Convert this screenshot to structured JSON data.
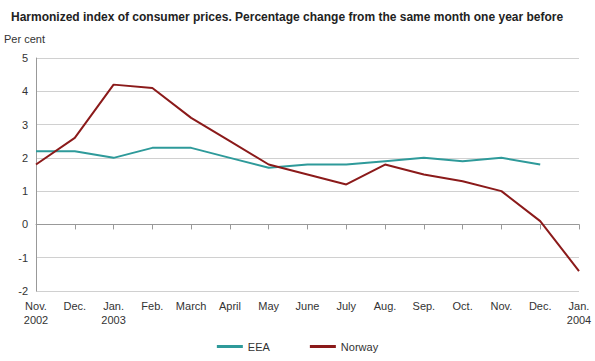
{
  "chart_data": {
    "type": "line",
    "title": "Harmonized index of consumer prices. Percentage change from the same month one year before",
    "y_label": "Per cent",
    "categories": [
      "Nov.\n2002",
      "Dec.",
      "Jan.\n2003",
      "Feb.",
      "March",
      "April",
      "May",
      "June",
      "July",
      "Aug.",
      "Sep.",
      "Oct.",
      "Nov.",
      "Dec.",
      "Jan.\n2004"
    ],
    "series": [
      {
        "name": "EEA",
        "color": "#2e9a9a",
        "values": [
          2.2,
          2.2,
          2.0,
          2.3,
          2.3,
          2.0,
          1.7,
          1.8,
          1.8,
          1.9,
          2.0,
          1.9,
          2.0,
          1.8,
          null
        ]
      },
      {
        "name": "Norway",
        "color": "#8b1a1a",
        "values": [
          1.8,
          2.6,
          4.2,
          4.1,
          3.2,
          2.5,
          1.8,
          1.5,
          1.2,
          1.8,
          1.5,
          1.3,
          1.0,
          0.1,
          -1.4
        ]
      }
    ],
    "ylim": [
      -2,
      5
    ],
    "yticks": [
      -2,
      -1,
      0,
      1,
      2,
      3,
      4,
      5
    ],
    "grid": true,
    "legend": "bottom"
  }
}
